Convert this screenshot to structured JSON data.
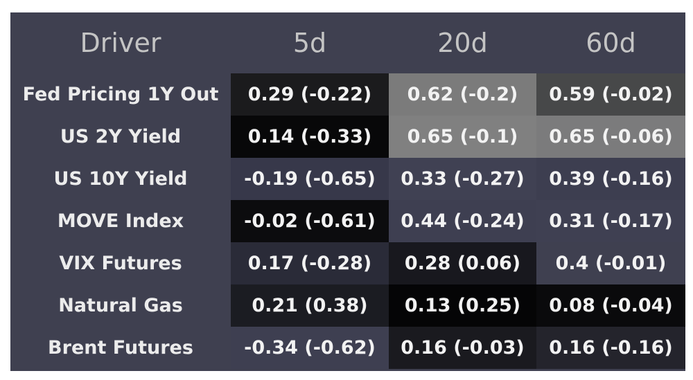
{
  "chart_data": {
    "type": "table",
    "columns": [
      "Driver",
      "5d",
      "20d",
      "60d"
    ],
    "rows": [
      {
        "driver": "Fed Pricing 1Y Out",
        "cells": [
          "0.29 (-0.22)",
          "0.62 (-0.2)",
          "0.59 (-0.02)"
        ],
        "colors": [
          "#1b1b1d",
          "#7b7b7b",
          "#474849"
        ]
      },
      {
        "driver": "US 2Y Yield",
        "cells": [
          "0.14 (-0.33)",
          "0.65 (-0.1)",
          "0.65 (-0.06)"
        ],
        "colors": [
          "#080809",
          "#808080",
          "#7b7b7c"
        ]
      },
      {
        "driver": "US 10Y Yield",
        "cells": [
          "-0.19 (-0.65)",
          "0.33 (-0.27)",
          "0.39 (-0.16)"
        ],
        "colors": [
          "#37384a",
          "#404153",
          "#3d3e50"
        ]
      },
      {
        "driver": "MOVE Index",
        "cells": [
          "-0.02 (-0.61)",
          "0.44 (-0.24)",
          "0.31 (-0.17)"
        ],
        "colors": [
          "#0c0c0e",
          "#3e3f51",
          "#3f4052"
        ]
      },
      {
        "driver": "VIX Futures",
        "cells": [
          "0.17 (-0.28)",
          "0.28 (0.06)",
          "0.4 (-0.01)"
        ],
        "colors": [
          "#2a2b38",
          "#18181e",
          "#3f4050"
        ]
      },
      {
        "driver": "Natural Gas",
        "cells": [
          "0.21 (0.38)",
          "0.13 (0.25)",
          "0.08 (-0.04)"
        ],
        "colors": [
          "#1b1c22",
          "#050506",
          "#0a0a0c"
        ]
      },
      {
        "driver": "Brent Futures",
        "cells": [
          "-0.34 (-0.62)",
          "0.16 (-0.03)",
          "0.16 (-0.16)"
        ],
        "colors": [
          "#3e3f51",
          "#1a1a1f",
          "#24242c"
        ]
      }
    ]
  }
}
